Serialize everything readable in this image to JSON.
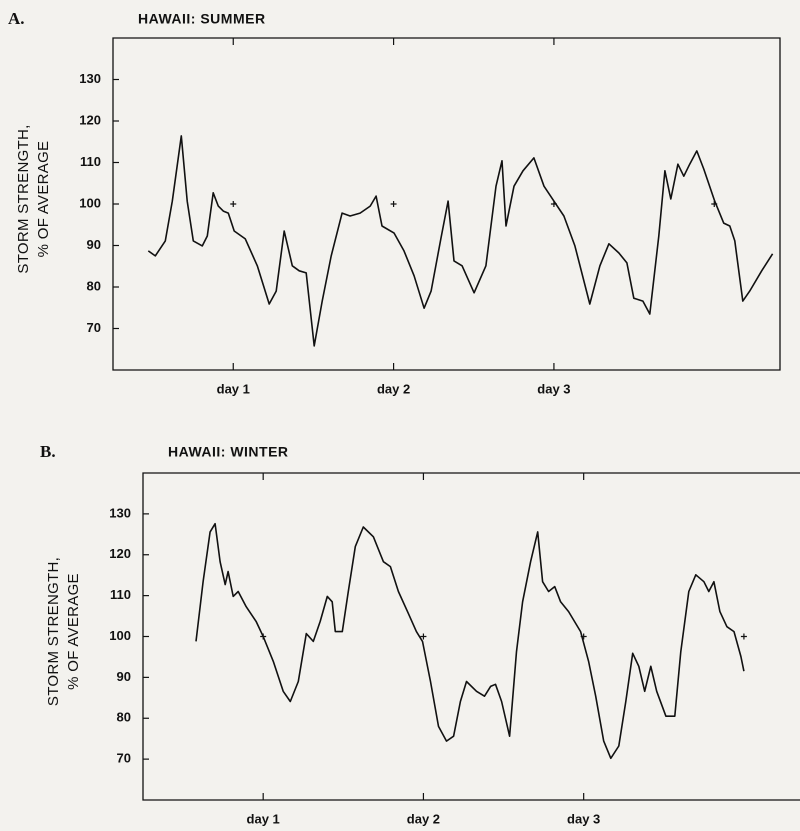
{
  "chart_data": [
    {
      "type": "line",
      "panel": "A.",
      "title": "HAWAII: SUMMER",
      "ylabel": [
        "STORM STRENGTH,",
        "% OF AVERAGE"
      ],
      "x": [
        0.47,
        0.514,
        0.576,
        0.62,
        0.676,
        0.713,
        0.751,
        0.807,
        0.838,
        0.875,
        0.907,
        0.938,
        0.969,
        1.006,
        1.075,
        1.15,
        1.224,
        1.268,
        1.318,
        1.368,
        1.411,
        1.455,
        1.505,
        1.555,
        1.611,
        1.679,
        1.729,
        1.791,
        1.854,
        1.891,
        1.928,
        2.003,
        2.065,
        2.128,
        2.19,
        2.234,
        2.296,
        2.34,
        2.377,
        2.427,
        2.502,
        2.576,
        2.639,
        2.676,
        2.701,
        2.751,
        2.807,
        2.875,
        2.938,
        3.0,
        3.062,
        3.131,
        3.224,
        3.287,
        3.343,
        3.405,
        3.455,
        3.498,
        3.555,
        3.598,
        3.654,
        3.692,
        3.729,
        3.773,
        3.81,
        3.847,
        3.891,
        3.935,
        4.003,
        4.059,
        4.097,
        4.128,
        4.178,
        4.221,
        4.296,
        4.364
      ],
      "series": [
        {
          "color": "#111111",
          "values": [
            88.7,
            87.5,
            91.1,
            100.7,
            116.4,
            100.7,
            91.1,
            89.9,
            92.3,
            102.7,
            99.5,
            98.3,
            97.8,
            93.5,
            91.6,
            85.1,
            75.9,
            79.0,
            93.5,
            85.1,
            83.9,
            83.4,
            65.8,
            76.6,
            87.5,
            97.8,
            97.1,
            97.8,
            99.5,
            101.9,
            94.7,
            93.0,
            88.7,
            82.7,
            74.9,
            79.0,
            91.8,
            100.7,
            86.3,
            85.1,
            78.6,
            85.1,
            104.3,
            110.4,
            94.7,
            104.3,
            108.0,
            111.1,
            104.3,
            100.7,
            97.1,
            89.9,
            75.9,
            85.1,
            90.4,
            88.2,
            85.8,
            77.3,
            76.6,
            73.5,
            92.3,
            108.0,
            101.2,
            109.6,
            106.7,
            109.6,
            112.8,
            108.4,
            100.7,
            95.4,
            94.7,
            91.1,
            76.6,
            79.0,
            83.9,
            88.0
          ]
        }
      ],
      "markers": {
        "x": [
          1,
          2,
          3,
          4
        ],
        "y": [
          100,
          100,
          100,
          100
        ]
      },
      "xlim": [
        0.25,
        4.41
      ],
      "ylim": [
        60,
        140
      ],
      "xticks": [
        {
          "value": 1,
          "label": "day 1"
        },
        {
          "value": 2,
          "label": "day 2"
        },
        {
          "value": 3,
          "label": "day 3"
        }
      ],
      "yticks": [
        70,
        80,
        90,
        100,
        110,
        120,
        130
      ]
    },
    {
      "type": "line",
      "panel": "B.",
      "title": "HAWAII: WINTER",
      "ylabel": [
        "STORM STRENGTH,",
        "% OF AVERAGE"
      ],
      "x": [
        0.581,
        0.625,
        0.669,
        0.7,
        0.731,
        0.763,
        0.781,
        0.813,
        0.844,
        0.894,
        0.956,
        1.0,
        1.063,
        1.125,
        1.169,
        1.219,
        1.269,
        1.313,
        1.356,
        1.4,
        1.431,
        1.45,
        1.494,
        1.531,
        1.575,
        1.625,
        1.688,
        1.75,
        1.794,
        1.844,
        1.906,
        1.956,
        1.994,
        2.044,
        2.094,
        2.144,
        2.188,
        2.231,
        2.269,
        2.331,
        2.381,
        2.419,
        2.45,
        2.488,
        2.538,
        2.581,
        2.619,
        2.669,
        2.713,
        2.744,
        2.781,
        2.819,
        2.856,
        2.906,
        2.981,
        3.031,
        3.075,
        3.125,
        3.169,
        3.219,
        3.263,
        3.306,
        3.344,
        3.381,
        3.419,
        3.456,
        3.513,
        3.569,
        3.606,
        3.656,
        3.7,
        3.75,
        3.781,
        3.813,
        3.85,
        3.894,
        3.938,
        3.981,
        4.0
      ],
      "series": [
        {
          "color": "#111111",
          "values": [
            98.8,
            113.4,
            125.6,
            127.6,
            118.3,
            112.7,
            115.9,
            109.8,
            111.0,
            107.3,
            103.7,
            100.0,
            93.9,
            86.6,
            84.1,
            89.0,
            100.7,
            98.8,
            103.7,
            109.8,
            108.5,
            101.2,
            101.2,
            111.0,
            122.0,
            126.8,
            124.4,
            118.3,
            117.1,
            111.0,
            105.6,
            101.2,
            98.8,
            89.0,
            78.0,
            74.4,
            75.6,
            84.1,
            89.0,
            86.6,
            85.4,
            87.8,
            88.3,
            84.1,
            75.6,
            96.3,
            108.5,
            118.3,
            125.6,
            113.4,
            111.0,
            112.2,
            108.5,
            106.1,
            101.2,
            93.9,
            85.4,
            74.4,
            70.2,
            73.2,
            84.1,
            95.9,
            92.7,
            86.6,
            92.7,
            86.6,
            80.5,
            80.5,
            96.3,
            111.0,
            115.1,
            113.4,
            111.0,
            113.4,
            106.1,
            102.4,
            101.2,
            95.1,
            91.5
          ]
        }
      ],
      "markers": {
        "x": [
          1,
          2,
          3,
          4
        ],
        "y": [
          100,
          100,
          100,
          100
        ]
      },
      "xlim": [
        0.25,
        4.35
      ],
      "ylim": [
        60,
        140
      ],
      "xticks": [
        {
          "value": 1,
          "label": "day 1"
        },
        {
          "value": 2,
          "label": "day 2"
        },
        {
          "value": 3,
          "label": "day 3"
        }
      ],
      "yticks": [
        70,
        80,
        90,
        100,
        110,
        120,
        130
      ]
    }
  ]
}
